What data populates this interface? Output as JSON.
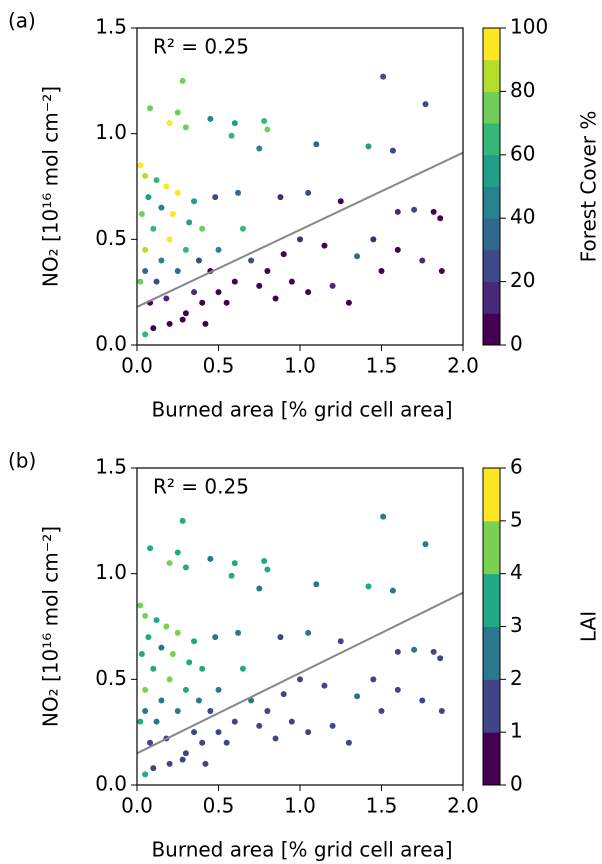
{
  "chart_data": [
    {
      "type": "scatter",
      "panel_label": "(a)",
      "annotation": "R² = 0.25",
      "xlabel": "Burned area [% grid cell area]",
      "ylabel": "NO₂ [10¹⁶ mol cm⁻²]",
      "xlim": [
        0,
        2.0
      ],
      "ylim": [
        0,
        1.5
      ],
      "xticks": [
        {
          "value": 0,
          "label": "0.0"
        },
        0.5,
        {
          "value": 1,
          "label": "1.0"
        },
        1.5,
        {
          "value": 2,
          "label": "2.0"
        }
      ],
      "yticks": [
        {
          "value": 0,
          "label": "0.0"
        },
        0.5,
        {
          "value": 1,
          "label": "1.0"
        },
        1.5
      ],
      "x": [
        1.51,
        1.77,
        0.28,
        0.08,
        0.25,
        0.2,
        0.45,
        0.3,
        0.6,
        0.78,
        0.8,
        0.58,
        0.75,
        1.42,
        1.57,
        1.1,
        0.02,
        0.05,
        0.12,
        0.18,
        0.25,
        0.35,
        0.48,
        0.62,
        0.88,
        1.05,
        1.25,
        1.6,
        1.7,
        1.82,
        1.86,
        1.6,
        1.75,
        1.87,
        1.5,
        1.35,
        1.15,
        1.0,
        0.9,
        0.8,
        0.7,
        0.6,
        0.5,
        0.4,
        0.3,
        0.2,
        0.1,
        0.05,
        0.02,
        0.05,
        0.1,
        0.15,
        0.2,
        0.25,
        0.3,
        0.35,
        0.4,
        0.45,
        0.5,
        0.55,
        0.65,
        0.75,
        0.85,
        0.95,
        1.05,
        1.2,
        1.3,
        1.45,
        0.08,
        0.12,
        0.18,
        0.22,
        0.28,
        0.03,
        0.07,
        0.15,
        0.32,
        0.38,
        0.42,
        0.05
      ],
      "y": [
        1.27,
        1.14,
        1.25,
        1.12,
        1.1,
        1.05,
        1.07,
        1.03,
        1.05,
        1.06,
        1.02,
        0.99,
        0.93,
        0.94,
        0.92,
        0.95,
        0.85,
        0.8,
        0.78,
        0.75,
        0.72,
        0.68,
        0.7,
        0.72,
        0.7,
        0.72,
        0.68,
        0.63,
        0.64,
        0.63,
        0.6,
        0.45,
        0.4,
        0.35,
        0.35,
        0.42,
        0.47,
        0.5,
        0.43,
        0.35,
        0.4,
        0.3,
        0.25,
        0.2,
        0.15,
        0.1,
        0.08,
        0.05,
        0.3,
        0.45,
        0.55,
        0.4,
        0.5,
        0.35,
        0.45,
        0.25,
        0.55,
        0.35,
        0.45,
        0.2,
        0.55,
        0.28,
        0.22,
        0.3,
        0.25,
        0.28,
        0.2,
        0.5,
        0.2,
        0.3,
        0.22,
        0.62,
        0.12,
        0.62,
        0.7,
        0.65,
        0.58,
        0.4,
        0.1,
        0.35
      ],
      "c": [
        20,
        20,
        70,
        70,
        70,
        90,
        40,
        70,
        50,
        60,
        70,
        60,
        40,
        50,
        20,
        30,
        90,
        80,
        60,
        90,
        90,
        50,
        20,
        30,
        10,
        20,
        5,
        10,
        20,
        5,
        5,
        5,
        10,
        5,
        5,
        30,
        5,
        15,
        5,
        5,
        20,
        5,
        5,
        5,
        5,
        5,
        5,
        60,
        70,
        80,
        60,
        40,
        90,
        30,
        60,
        10,
        70,
        5,
        40,
        5,
        60,
        5,
        5,
        5,
        5,
        10,
        5,
        10,
        5,
        20,
        10,
        90,
        5,
        70,
        50,
        40,
        50,
        20,
        5,
        30
      ],
      "fit": {
        "x": [
          0,
          2.0
        ],
        "y": [
          0.18,
          0.91
        ],
        "color": "#888888"
      },
      "colorbar": {
        "label": "Forest Cover %",
        "lim": [
          0,
          100
        ],
        "ticks": [
          0,
          20,
          40,
          60,
          80,
          100
        ],
        "colors": [
          "#440154",
          "#482878",
          "#3e4989",
          "#31688e",
          "#26828e",
          "#1f9e89",
          "#35b779",
          "#6ece58",
          "#b5de2b",
          "#fde725"
        ]
      }
    },
    {
      "type": "scatter",
      "panel_label": "(b)",
      "annotation": "R² = 0.25",
      "xlabel": "Burned area [% grid cell area]",
      "ylabel": "NO₂ [10¹⁶ mol cm⁻²]",
      "xlim": [
        0,
        2.0
      ],
      "ylim": [
        0,
        1.5
      ],
      "xticks": [
        {
          "value": 0,
          "label": "0.0"
        },
        0.5,
        {
          "value": 1,
          "label": "1.0"
        },
        1.5,
        {
          "value": 2,
          "label": "2.0"
        }
      ],
      "yticks": [
        {
          "value": 0,
          "label": "0.0"
        },
        0.5,
        {
          "value": 1,
          "label": "1.0"
        },
        1.5
      ],
      "x": [
        1.51,
        1.77,
        0.28,
        0.08,
        0.25,
        0.2,
        0.45,
        0.3,
        0.6,
        0.78,
        0.8,
        0.58,
        0.75,
        1.42,
        1.57,
        1.1,
        0.02,
        0.05,
        0.12,
        0.18,
        0.25,
        0.35,
        0.48,
        0.62,
        0.88,
        1.05,
        1.25,
        1.6,
        1.7,
        1.82,
        1.86,
        1.6,
        1.75,
        1.87,
        1.5,
        1.35,
        1.15,
        1.0,
        0.9,
        0.8,
        0.7,
        0.6,
        0.5,
        0.4,
        0.3,
        0.2,
        0.1,
        0.05,
        0.02,
        0.05,
        0.1,
        0.15,
        0.2,
        0.25,
        0.3,
        0.35,
        0.4,
        0.45,
        0.5,
        0.55,
        0.65,
        0.75,
        0.85,
        0.95,
        1.05,
        1.2,
        1.3,
        1.45,
        0.08,
        0.12,
        0.18,
        0.22,
        0.28,
        0.03,
        0.07,
        0.15,
        0.32,
        0.38,
        0.42,
        0.05
      ],
      "y": [
        1.27,
        1.14,
        1.25,
        1.12,
        1.1,
        1.05,
        1.07,
        1.03,
        1.05,
        1.06,
        1.02,
        0.99,
        0.93,
        0.94,
        0.92,
        0.95,
        0.85,
        0.8,
        0.78,
        0.75,
        0.72,
        0.68,
        0.7,
        0.72,
        0.7,
        0.72,
        0.68,
        0.63,
        0.64,
        0.63,
        0.6,
        0.45,
        0.4,
        0.35,
        0.35,
        0.42,
        0.47,
        0.5,
        0.43,
        0.35,
        0.4,
        0.3,
        0.25,
        0.2,
        0.15,
        0.1,
        0.08,
        0.05,
        0.3,
        0.45,
        0.55,
        0.4,
        0.5,
        0.35,
        0.45,
        0.25,
        0.55,
        0.35,
        0.45,
        0.2,
        0.55,
        0.28,
        0.22,
        0.3,
        0.25,
        0.28,
        0.2,
        0.5,
        0.2,
        0.3,
        0.22,
        0.62,
        0.12,
        0.62,
        0.7,
        0.65,
        0.58,
        0.4,
        0.1,
        0.35
      ],
      "c": [
        2,
        2,
        3.7,
        3.7,
        3.7,
        4.6,
        2.7,
        3.7,
        3,
        3.3,
        3.7,
        3.3,
        2.7,
        3,
        2,
        2.3,
        4.6,
        4,
        3.3,
        4.6,
        4.6,
        3,
        2,
        2.3,
        1.6,
        2,
        1.5,
        1.6,
        2,
        1.5,
        1.5,
        1.5,
        1.6,
        1.5,
        1.5,
        2.3,
        1.5,
        1.8,
        1.5,
        1.5,
        2,
        1.5,
        1.5,
        1.5,
        1.5,
        1.5,
        1.5,
        3.3,
        3.7,
        4,
        3.3,
        2.7,
        4.6,
        2.3,
        3.3,
        1.6,
        3.7,
        1.5,
        2.7,
        1.5,
        3.3,
        1.5,
        1.5,
        1.5,
        1.5,
        1.6,
        1.5,
        1.6,
        1.5,
        2,
        1.6,
        4.6,
        1.5,
        3.7,
        3,
        2.7,
        3,
        2,
        1.5,
        2.3
      ],
      "fit": {
        "x": [
          0,
          2.0
        ],
        "y": [
          0.15,
          0.91
        ],
        "color": "#888888"
      },
      "colorbar": {
        "label": "LAI",
        "lim": [
          0,
          6
        ],
        "ticks": [
          0,
          1,
          2,
          3,
          4,
          5,
          6
        ],
        "colors": [
          "#440154",
          "#414487",
          "#2a788e",
          "#22a884",
          "#7ad151",
          "#fde725"
        ]
      }
    }
  ]
}
